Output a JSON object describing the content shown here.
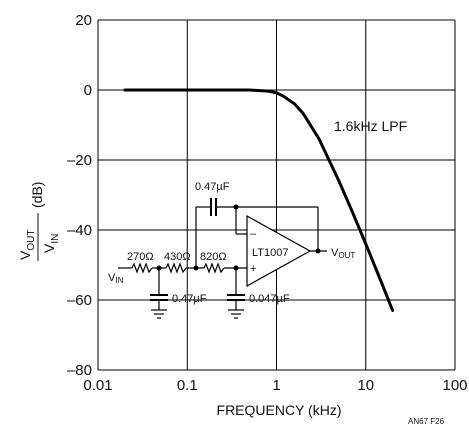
{
  "chart_data": {
    "type": "line",
    "xlabel": "FREQUENCY (kHz)",
    "ylabel_main": "V",
    "ylabel_num_sub": "OUT",
    "ylabel_den": "V",
    "ylabel_den_sub": "IN",
    "ylabel_unit": "(dB)",
    "x_scale": "log",
    "xlim": [
      0.01,
      100
    ],
    "ylim": [
      -80,
      20
    ],
    "grid": true,
    "x_ticks": [
      0.01,
      0.1,
      1,
      10,
      100
    ],
    "x_tick_labels": [
      "0.01",
      "0.1",
      "1",
      "10",
      "100"
    ],
    "y_ticks": [
      20,
      0,
      -20,
      -40,
      -60,
      -80
    ],
    "y_tick_labels": [
      "20",
      "0",
      "–20",
      "–40",
      "–60",
      "–80"
    ],
    "series": [
      {
        "x": [
          0.02,
          0.1,
          0.5,
          0.8,
          1.0,
          1.2,
          1.6,
          2.0,
          3.0,
          5.0,
          7.0,
          10.0,
          15.0,
          20.0
        ],
        "values": [
          0,
          0,
          0,
          -0.3,
          -0.8,
          -1.8,
          -4,
          -6.8,
          -14,
          -26,
          -34.5,
          -44,
          -55,
          -63
        ]
      }
    ],
    "annotations": {
      "curve_label": "1.6kHz LPF",
      "figure_code": "AN67 F26"
    }
  },
  "schematic": {
    "cap_feedback": "0.47µF",
    "r1": "270Ω",
    "r2": "430Ω",
    "r3": "820Ω",
    "cap_gnd1": "0.47µF",
    "cap_gnd2": "0.047µF",
    "opamp": "LT1007",
    "vin_main": "V",
    "vin_sub": "IN",
    "vout_main": "V",
    "vout_sub": "OUT",
    "minus": "–",
    "plus": "+"
  }
}
